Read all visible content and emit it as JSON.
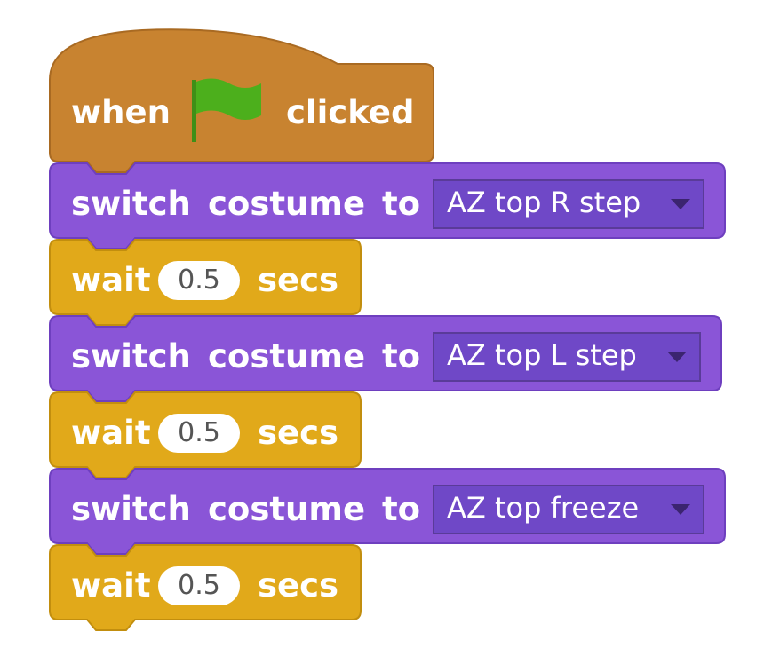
{
  "script": {
    "hat": {
      "when_label": "when",
      "flag_icon": "green-flag-icon",
      "clicked_label": "clicked"
    },
    "blocks": [
      {
        "type": "switch-costume",
        "label_switch": "switch",
        "label_costume": "costume",
        "label_to": "to",
        "costume": "AZ top R step"
      },
      {
        "type": "wait",
        "label_wait": "wait",
        "seconds": "0.5",
        "label_secs": "secs"
      },
      {
        "type": "switch-costume",
        "label_switch": "switch",
        "label_costume": "costume",
        "label_to": "to",
        "costume": "AZ top L step"
      },
      {
        "type": "wait",
        "label_wait": "wait",
        "seconds": "0.5",
        "label_secs": "secs"
      },
      {
        "type": "switch-costume",
        "label_switch": "switch",
        "label_costume": "costume",
        "label_to": "to",
        "costume": "AZ top freeze"
      },
      {
        "type": "wait",
        "label_wait": "wait",
        "seconds": "0.5",
        "label_secs": "secs"
      }
    ]
  },
  "colors": {
    "events": "#c88330",
    "looks": "#8a55d7",
    "control": "#e1a91a",
    "flag": "#4caf1c"
  }
}
